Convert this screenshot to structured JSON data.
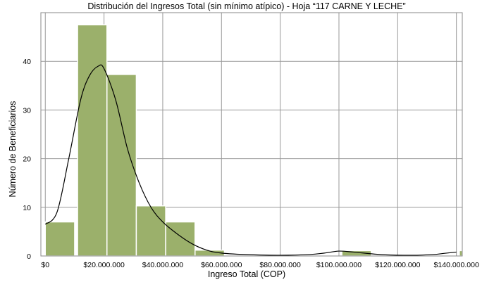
{
  "chart_data": {
    "type": "bar",
    "title": "Distribución del Ingresos Total (sin mínimo atípico) - Hoja “117 CARNE Y LECHE”",
    "xlabel": "Ingreso Total (COP)",
    "ylabel": "Número de Beneficiarios",
    "xlim": [
      -1500000,
      142000000
    ],
    "ylim": [
      0,
      50
    ],
    "grid": true,
    "bar_color": "#9bb06b",
    "bar_edge_color": "#ffffff",
    "curve_color": "#000000",
    "x_ticks": [
      {
        "value": 0,
        "label": "$0"
      },
      {
        "value": 20000000,
        "label": "$20.000.000"
      },
      {
        "value": 40000000,
        "label": "$40.000.000"
      },
      {
        "value": 60000000,
        "label": "$60.000.000"
      },
      {
        "value": 80000000,
        "label": "$80.000.000"
      },
      {
        "value": 100000000,
        "label": "$100.000.000"
      },
      {
        "value": 120000000,
        "label": "$120.000.000"
      },
      {
        "value": 140000000,
        "label": "$140.000.000"
      }
    ],
    "y_ticks": [
      {
        "value": 0,
        "label": "0"
      },
      {
        "value": 10,
        "label": "10"
      },
      {
        "value": 20,
        "label": "20"
      },
      {
        "value": 30,
        "label": "30"
      },
      {
        "value": 40,
        "label": "40"
      }
    ],
    "bins": [
      {
        "x0": 0,
        "x1": 10000000,
        "count": 7
      },
      {
        "x0": 11000000,
        "x1": 21000000,
        "count": 47.5
      },
      {
        "x0": 21000000,
        "x1": 31000000,
        "count": 37.3
      },
      {
        "x0": 31000000,
        "x1": 41000000,
        "count": 10.3
      },
      {
        "x0": 41000000,
        "x1": 51000000,
        "count": 7
      },
      {
        "x0": 51000000,
        "x1": 61000000,
        "count": 1.2
      },
      {
        "x0": 101000000,
        "x1": 111000000,
        "count": 1.1
      },
      {
        "x0": 141000000,
        "x1": 151000000,
        "count": 1.1
      }
    ],
    "density_curve": {
      "x": [
        0,
        4000000,
        8000000,
        12000000,
        15000000,
        18000000,
        20000000,
        24000000,
        28000000,
        32000000,
        36000000,
        40000000,
        45000000,
        50000000,
        55000000,
        60000000,
        70000000,
        80000000,
        90000000,
        95000000,
        100000000,
        105000000,
        115000000,
        125000000,
        132000000,
        136000000,
        140000000
      ],
      "y": [
        6.5,
        9,
        20,
        32,
        37,
        39,
        38.5,
        32,
        22,
        15,
        10,
        7,
        4.5,
        2.5,
        1.2,
        0.6,
        0.25,
        0.15,
        0.3,
        0.6,
        1.0,
        0.8,
        0.25,
        0.15,
        0.3,
        0.55,
        0.8
      ]
    }
  }
}
